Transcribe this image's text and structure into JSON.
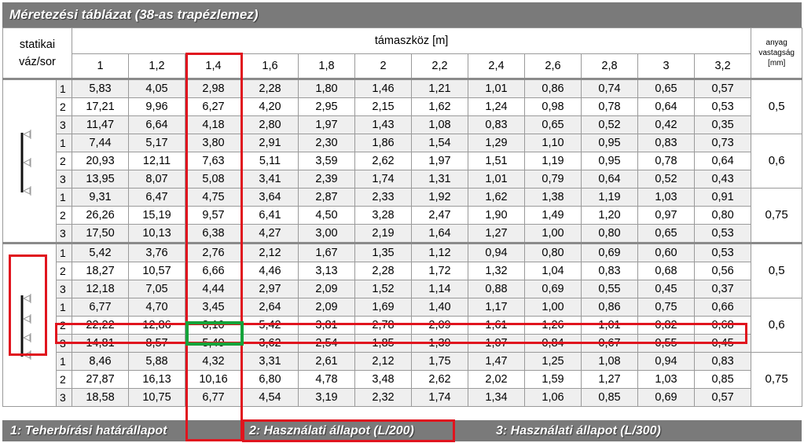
{
  "title": "Méretezési táblázat (38-as trapézlemez)",
  "header": {
    "statikai": "statikai",
    "vaz_sor": "váz/sor",
    "span_label": "támaszköz [m]",
    "material_label": "anyag vastagság [mm]",
    "spans": [
      "1",
      "1,2",
      "1,4",
      "1,6",
      "1,8",
      "2",
      "2,2",
      "2,4",
      "2,6",
      "2,8",
      "3",
      "3,2"
    ]
  },
  "groups": [
    {
      "scheme": "two-span",
      "blocks": [
        {
          "thickness": "0,5",
          "rows": [
            {
              "row": "1",
              "values": [
                "5,83",
                "4,05",
                "2,98",
                "2,28",
                "1,80",
                "1,46",
                "1,21",
                "1,01",
                "0,86",
                "0,74",
                "0,65",
                "0,57"
              ]
            },
            {
              "row": "2",
              "values": [
                "17,21",
                "9,96",
                "6,27",
                "4,20",
                "2,95",
                "2,15",
                "1,62",
                "1,24",
                "0,98",
                "0,78",
                "0,64",
                "0,53"
              ]
            },
            {
              "row": "3",
              "values": [
                "11,47",
                "6,64",
                "4,18",
                "2,80",
                "1,97",
                "1,43",
                "1,08",
                "0,83",
                "0,65",
                "0,52",
                "0,42",
                "0,35"
              ]
            }
          ]
        },
        {
          "thickness": "0,6",
          "rows": [
            {
              "row": "1",
              "values": [
                "7,44",
                "5,17",
                "3,80",
                "2,91",
                "2,30",
                "1,86",
                "1,54",
                "1,29",
                "1,10",
                "0,95",
                "0,83",
                "0,73"
              ]
            },
            {
              "row": "2",
              "values": [
                "20,93",
                "12,11",
                "7,63",
                "5,11",
                "3,59",
                "2,62",
                "1,97",
                "1,51",
                "1,19",
                "0,95",
                "0,78",
                "0,64"
              ]
            },
            {
              "row": "3",
              "values": [
                "13,95",
                "8,07",
                "5,08",
                "3,41",
                "2,39",
                "1,74",
                "1,31",
                "1,01",
                "0,79",
                "0,64",
                "0,52",
                "0,43"
              ]
            }
          ]
        },
        {
          "thickness": "0,75",
          "rows": [
            {
              "row": "1",
              "values": [
                "9,31",
                "6,47",
                "4,75",
                "3,64",
                "2,87",
                "2,33",
                "1,92",
                "1,62",
                "1,38",
                "1,19",
                "1,03",
                "0,91"
              ]
            },
            {
              "row": "2",
              "values": [
                "26,26",
                "15,19",
                "9,57",
                "6,41",
                "4,50",
                "3,28",
                "2,47",
                "1,90",
                "1,49",
                "1,20",
                "0,97",
                "0,80"
              ]
            },
            {
              "row": "3",
              "values": [
                "17,50",
                "10,13",
                "6,38",
                "4,27",
                "3,00",
                "2,19",
                "1,64",
                "1,27",
                "1,00",
                "0,80",
                "0,65",
                "0,53"
              ]
            }
          ]
        }
      ]
    },
    {
      "scheme": "three-span",
      "blocks": [
        {
          "thickness": "0,5",
          "rows": [
            {
              "row": "1",
              "values": [
                "5,42",
                "3,76",
                "2,76",
                "2,12",
                "1,67",
                "1,35",
                "1,12",
                "0,94",
                "0,80",
                "0,69",
                "0,60",
                "0,53"
              ]
            },
            {
              "row": "2",
              "values": [
                "18,27",
                "10,57",
                "6,66",
                "4,46",
                "3,13",
                "2,28",
                "1,72",
                "1,32",
                "1,04",
                "0,83",
                "0,68",
                "0,56"
              ]
            },
            {
              "row": "3",
              "values": [
                "12,18",
                "7,05",
                "4,44",
                "2,97",
                "2,09",
                "1,52",
                "1,14",
                "0,88",
                "0,69",
                "0,55",
                "0,45",
                "0,37"
              ]
            }
          ]
        },
        {
          "thickness": "0,6",
          "rows": [
            {
              "row": "1",
              "values": [
                "6,77",
                "4,70",
                "3,45",
                "2,64",
                "2,09",
                "1,69",
                "1,40",
                "1,17",
                "1,00",
                "0,86",
                "0,75",
                "0,66"
              ]
            },
            {
              "row": "2",
              "values": [
                "22,22",
                "12,86",
                "8,10",
                "5,42",
                "3,81",
                "2,78",
                "2,09",
                "1,61",
                "1,26",
                "1,01",
                "0,82",
                "0,68"
              ]
            },
            {
              "row": "3",
              "values": [
                "14,81",
                "8,57",
                "5,40",
                "3,62",
                "2,54",
                "1,85",
                "1,39",
                "1,07",
                "0,84",
                "0,67",
                "0,55",
                "0,45"
              ]
            }
          ]
        },
        {
          "thickness": "0,75",
          "rows": [
            {
              "row": "1",
              "values": [
                "8,46",
                "5,88",
                "4,32",
                "3,31",
                "2,61",
                "2,12",
                "1,75",
                "1,47",
                "1,25",
                "1,08",
                "0,94",
                "0,83"
              ]
            },
            {
              "row": "2",
              "values": [
                "27,87",
                "16,13",
                "10,16",
                "6,80",
                "4,78",
                "3,48",
                "2,62",
                "2,02",
                "1,59",
                "1,27",
                "1,03",
                "0,85"
              ]
            },
            {
              "row": "3",
              "values": [
                "18,58",
                "10,75",
                "6,77",
                "4,54",
                "3,19",
                "2,32",
                "1,74",
                "1,34",
                "1,06",
                "0,85",
                "0,69",
                "0,57"
              ]
            }
          ]
        }
      ]
    }
  ],
  "legend": {
    "item1": "1: Teherbírási határállapot",
    "item2": "2: Használati állapot (L/200)",
    "item3": "3: Használati állapot (L/300)"
  },
  "highlight": {
    "red_color": "#e0141e",
    "green_color": "#15a33a",
    "bar_color": "#7a7a7a"
  }
}
